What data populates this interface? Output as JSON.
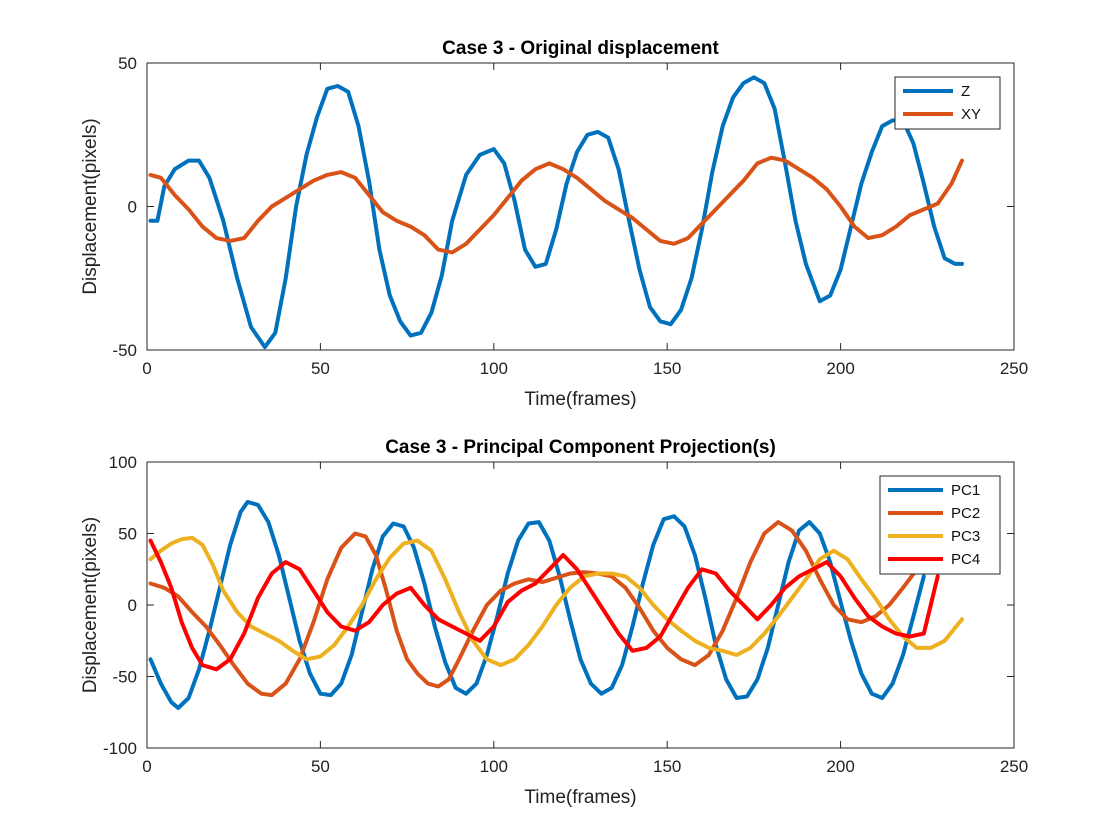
{
  "chart_data": [
    {
      "type": "line",
      "title": "Case 3 - Original displacement",
      "xlabel": "Time(frames)",
      "ylabel": "Displacement(pixels)",
      "xlim": [
        0,
        250
      ],
      "ylim": [
        -50,
        50
      ],
      "xticks": [
        0,
        50,
        100,
        150,
        200,
        250
      ],
      "yticks": [
        -50,
        0,
        50
      ],
      "xtick_labels": [
        "0",
        "50",
        "100",
        "150",
        "200",
        "250"
      ],
      "ytick_labels": [
        "-50",
        "0",
        "50"
      ],
      "legend_position": "top-right",
      "grid": false,
      "series": [
        {
          "name": "Z",
          "color": "#0072BD",
          "x": [
            1,
            3,
            5,
            8,
            12,
            15,
            18,
            22,
            26,
            30,
            34,
            37,
            40,
            43,
            46,
            49,
            52,
            55,
            58,
            61,
            64,
            67,
            70,
            73,
            76,
            79,
            82,
            85,
            88,
            92,
            96,
            100,
            103,
            106,
            109,
            112,
            115,
            118,
            121,
            124,
            127,
            130,
            133,
            136,
            139,
            142,
            145,
            148,
            151,
            154,
            157,
            160,
            163,
            166,
            169,
            172,
            175,
            178,
            181,
            184,
            187,
            190,
            194,
            197,
            200,
            203,
            206,
            209,
            212,
            215,
            218,
            221,
            224,
            227,
            230,
            233,
            235
          ],
          "y": [
            -5,
            -5,
            7,
            13,
            16,
            16,
            10,
            -5,
            -25,
            -42,
            -49,
            -44,
            -25,
            0,
            18,
            31,
            41,
            42,
            40,
            28,
            9,
            -15,
            -31,
            -40,
            -45,
            -44,
            -37,
            -24,
            -5,
            11,
            18,
            20,
            15,
            2,
            -15,
            -21,
            -20,
            -8,
            8,
            19,
            25,
            26,
            24,
            13,
            -5,
            -22,
            -35,
            -40,
            -41,
            -36,
            -25,
            -8,
            12,
            28,
            38,
            43,
            45,
            43,
            34,
            15,
            -5,
            -20,
            -33,
            -31,
            -22,
            -7,
            8,
            19,
            28,
            30,
            30,
            22,
            8,
            -7,
            -18,
            -20,
            -20
          ]
        },
        {
          "name": "XY",
          "color": "#D95319",
          "x": [
            1,
            4,
            8,
            12,
            16,
            20,
            24,
            28,
            32,
            36,
            40,
            44,
            48,
            52,
            56,
            60,
            64,
            68,
            72,
            76,
            80,
            84,
            88,
            92,
            96,
            100,
            104,
            108,
            112,
            116,
            120,
            124,
            128,
            132,
            136,
            140,
            144,
            148,
            152,
            156,
            160,
            164,
            168,
            172,
            176,
            180,
            184,
            188,
            192,
            196,
            200,
            204,
            208,
            212,
            216,
            220,
            224,
            228,
            232,
            235
          ],
          "y": [
            11,
            10,
            4,
            -1,
            -7,
            -11,
            -12,
            -11,
            -5,
            0,
            3,
            6,
            9,
            11,
            12,
            10,
            4,
            -2,
            -5,
            -7,
            -10,
            -15,
            -16,
            -13,
            -8,
            -3,
            3,
            9,
            13,
            15,
            13,
            10,
            6,
            2,
            -1,
            -4,
            -8,
            -12,
            -13,
            -11,
            -6,
            -1,
            4,
            9,
            15,
            17,
            16,
            13,
            10,
            6,
            0,
            -7,
            -11,
            -10,
            -7,
            -3,
            -1,
            1,
            8,
            16
          ]
        }
      ]
    },
    {
      "type": "line",
      "title": "Case 3 - Principal Component Projection(s)",
      "xlabel": "Time(frames)",
      "ylabel": "Displacement(pixels)",
      "xlim": [
        0,
        250
      ],
      "ylim": [
        -100,
        100
      ],
      "xticks": [
        0,
        50,
        100,
        150,
        200,
        250
      ],
      "yticks": [
        -100,
        -50,
        0,
        50,
        100
      ],
      "xtick_labels": [
        "0",
        "50",
        "100",
        "150",
        "200",
        "250"
      ],
      "ytick_labels": [
        "-100",
        "-50",
        "0",
        "50",
        "100"
      ],
      "legend_position": "top-right",
      "grid": false,
      "series": [
        {
          "name": "PC1",
          "color": "#0072BD",
          "x": [
            1,
            4,
            7,
            9,
            12,
            15,
            18,
            21,
            24,
            27,
            29,
            32,
            35,
            38,
            41,
            44,
            47,
            50,
            53,
            56,
            59,
            62,
            65,
            68,
            71,
            74,
            77,
            80,
            83,
            86,
            89,
            92,
            95,
            98,
            101,
            104,
            107,
            110,
            113,
            116,
            119,
            122,
            125,
            128,
            131,
            134,
            137,
            140,
            143,
            146,
            149,
            152,
            155,
            158,
            161,
            164,
            167,
            170,
            173,
            176,
            179,
            182,
            185,
            188,
            191,
            194,
            197,
            200,
            203,
            206,
            209,
            212,
            215,
            218,
            221,
            224
          ],
          "y": [
            -38,
            -55,
            -68,
            -72,
            -65,
            -45,
            -18,
            12,
            42,
            65,
            72,
            70,
            58,
            35,
            5,
            -25,
            -48,
            -62,
            -63,
            -55,
            -35,
            -5,
            25,
            48,
            57,
            55,
            40,
            15,
            -15,
            -40,
            -58,
            -62,
            -55,
            -35,
            -8,
            22,
            45,
            57,
            58,
            45,
            20,
            -10,
            -38,
            -55,
            -62,
            -58,
            -42,
            -15,
            15,
            42,
            60,
            62,
            55,
            35,
            5,
            -28,
            -52,
            -65,
            -64,
            -52,
            -30,
            0,
            30,
            52,
            58,
            50,
            30,
            2,
            -25,
            -48,
            -62,
            -65,
            -55,
            -35,
            -8,
            20
          ]
        },
        {
          "name": "PC2",
          "color": "#D95319",
          "x": [
            1,
            5,
            9,
            13,
            17,
            21,
            25,
            29,
            33,
            36,
            40,
            44,
            48,
            52,
            56,
            60,
            63,
            66,
            69,
            72,
            75,
            78,
            81,
            84,
            87,
            90,
            94,
            98,
            102,
            106,
            110,
            114,
            118,
            122,
            126,
            130,
            134,
            138,
            142,
            146,
            150,
            154,
            158,
            162,
            166,
            170,
            174,
            178,
            182,
            186,
            190,
            194,
            198,
            202,
            206,
            210,
            214,
            218,
            222
          ],
          "y": [
            15,
            12,
            6,
            -5,
            -15,
            -28,
            -42,
            -55,
            -62,
            -63,
            -55,
            -38,
            -12,
            18,
            40,
            50,
            48,
            35,
            10,
            -18,
            -38,
            -48,
            -55,
            -57,
            -52,
            -38,
            -18,
            0,
            10,
            15,
            18,
            16,
            19,
            22,
            23,
            22,
            20,
            12,
            -2,
            -18,
            -30,
            -38,
            -42,
            -35,
            -18,
            5,
            30,
            50,
            58,
            52,
            38,
            18,
            0,
            -10,
            -12,
            -8,
            0,
            12,
            25
          ]
        },
        {
          "name": "PC3",
          "color": "#EDB120",
          "x": [
            1,
            4,
            7,
            10,
            13,
            16,
            19,
            22,
            26,
            30,
            34,
            38,
            42,
            46,
            50,
            54,
            58,
            62,
            66,
            70,
            74,
            78,
            82,
            86,
            90,
            94,
            98,
            102,
            106,
            110,
            114,
            118,
            122,
            126,
            130,
            134,
            138,
            142,
            146,
            150,
            154,
            158,
            162,
            166,
            170,
            174,
            178,
            182,
            186,
            190,
            194,
            198,
            202,
            206,
            210,
            214,
            218,
            222,
            226,
            230,
            233,
            235
          ],
          "y": [
            32,
            38,
            43,
            46,
            47,
            42,
            28,
            10,
            -5,
            -15,
            -20,
            -25,
            -32,
            -38,
            -36,
            -28,
            -15,
            0,
            18,
            33,
            43,
            45,
            38,
            18,
            -5,
            -25,
            -38,
            -42,
            -38,
            -28,
            -15,
            0,
            12,
            20,
            22,
            22,
            20,
            12,
            0,
            -10,
            -18,
            -25,
            -30,
            -32,
            -35,
            -30,
            -20,
            -8,
            5,
            18,
            32,
            38,
            32,
            18,
            5,
            -10,
            -22,
            -30,
            -30,
            -25,
            -16,
            -10
          ]
        },
        {
          "name": "PC4",
          "color": "#FF0000",
          "x": [
            1,
            4,
            7,
            10,
            13,
            16,
            20,
            24,
            28,
            32,
            36,
            40,
            44,
            48,
            52,
            56,
            60,
            64,
            68,
            72,
            76,
            80,
            84,
            88,
            92,
            96,
            100,
            104,
            108,
            112,
            116,
            120,
            124,
            128,
            132,
            136,
            140,
            144,
            148,
            152,
            156,
            160,
            164,
            168,
            172,
            176,
            180,
            184,
            188,
            192,
            196,
            200,
            204,
            208,
            212,
            216,
            220,
            224,
            228
          ],
          "y": [
            45,
            30,
            12,
            -12,
            -30,
            -42,
            -45,
            -38,
            -20,
            5,
            22,
            30,
            25,
            10,
            -5,
            -15,
            -18,
            -12,
            0,
            8,
            12,
            0,
            -10,
            -15,
            -20,
            -25,
            -15,
            2,
            10,
            15,
            25,
            35,
            25,
            10,
            -5,
            -20,
            -32,
            -30,
            -22,
            -5,
            12,
            25,
            22,
            10,
            0,
            -10,
            0,
            12,
            20,
            25,
            30,
            20,
            5,
            -8,
            -15,
            -20,
            -22,
            -20,
            20
          ]
        }
      ]
    }
  ]
}
